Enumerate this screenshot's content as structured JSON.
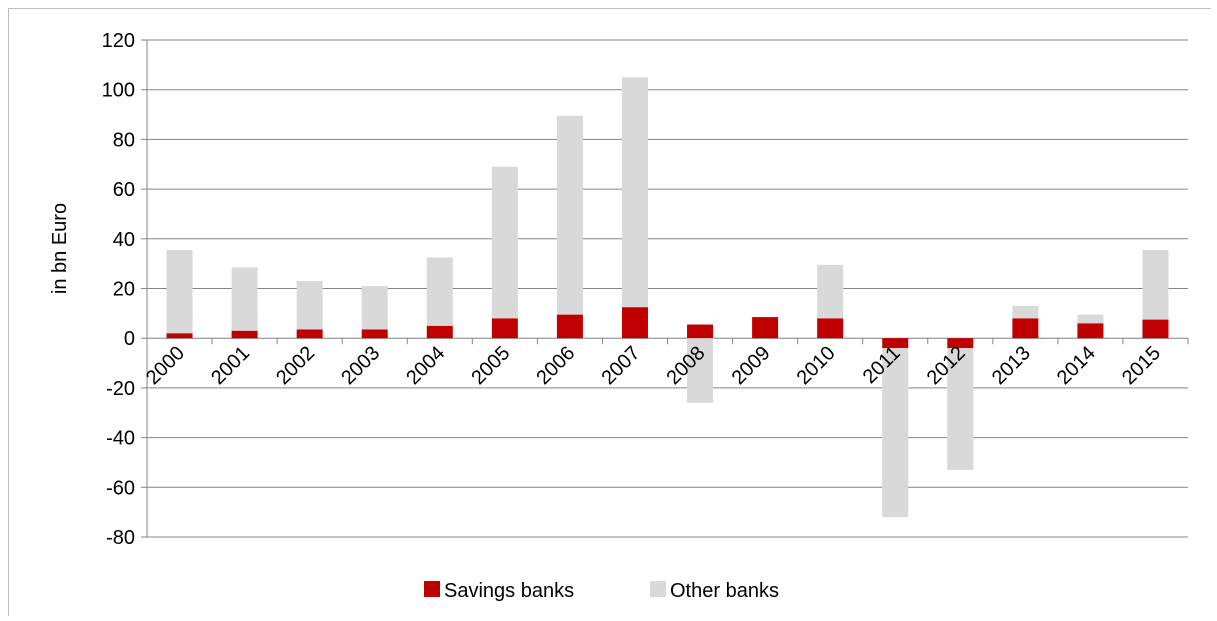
{
  "chart_data": {
    "type": "bar",
    "stacked": true,
    "title": "",
    "xlabel": "",
    "ylabel": "in bn Euro",
    "ylim": [
      -80,
      120
    ],
    "yticks": [
      -80,
      -60,
      -40,
      -20,
      0,
      20,
      40,
      60,
      80,
      100,
      120
    ],
    "grid": true,
    "legend_position": "bottom",
    "categories": [
      "2000",
      "2001",
      "2002",
      "2003",
      "2004",
      "2005",
      "2006",
      "2007",
      "2008",
      "2009",
      "2010",
      "2011",
      "2012",
      "2013",
      "2014",
      "2015"
    ],
    "series": [
      {
        "name": "Savings banks",
        "color": "#c00000",
        "values": [
          2,
          3,
          3.5,
          3.5,
          5,
          8,
          9.5,
          12.5,
          5.5,
          8.5,
          8,
          -4,
          -4,
          8,
          6,
          7.5
        ]
      },
      {
        "name": "Other banks",
        "color": "#d9d9d9",
        "values": [
          33.5,
          25.5,
          19.5,
          17.5,
          27.5,
          61,
          80,
          92.5,
          -26,
          0,
          21.5,
          -68,
          -49,
          5,
          3.5,
          28
        ]
      }
    ]
  }
}
